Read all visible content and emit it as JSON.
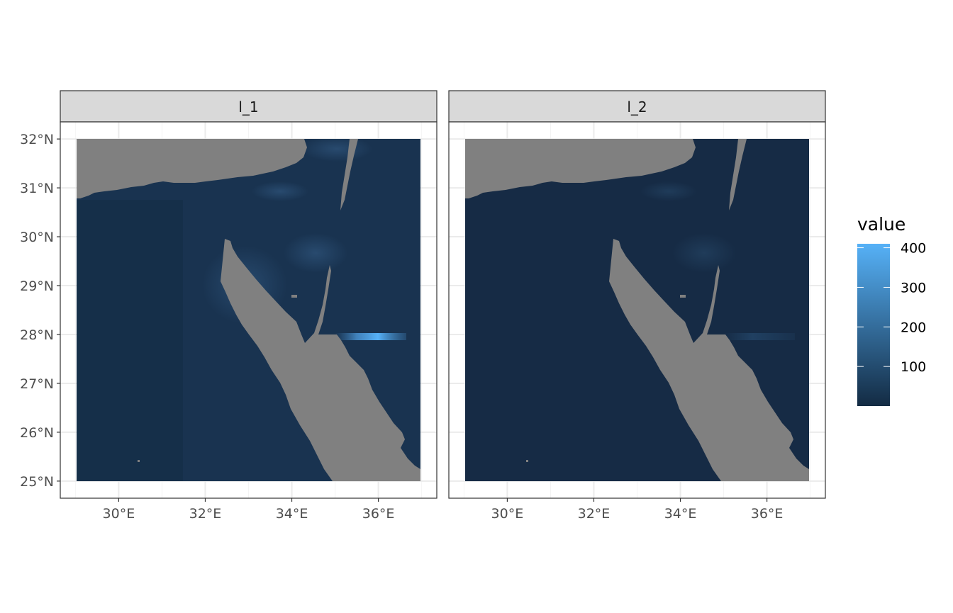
{
  "chart_data": {
    "type": "heatmap",
    "panels": [
      {
        "label": "l_1",
        "sea_color": "#193350",
        "highlight_alpha": 1.0
      },
      {
        "label": "l_2",
        "sea_color": "#162b45",
        "highlight_alpha": 0.35
      }
    ],
    "x_ticks": [
      {
        "value": 30,
        "label": "30°E"
      },
      {
        "value": 32,
        "label": "32°E"
      },
      {
        "value": 34,
        "label": "34°E"
      },
      {
        "value": 36,
        "label": "36°E"
      }
    ],
    "y_ticks": [
      {
        "value": 25,
        "label": "25°N"
      },
      {
        "value": 26,
        "label": "26°N"
      },
      {
        "value": 27,
        "label": "27°N"
      },
      {
        "value": 28,
        "label": "28°N"
      },
      {
        "value": 29,
        "label": "29°N"
      },
      {
        "value": 30,
        "label": "30°N"
      },
      {
        "value": 31,
        "label": "31°N"
      },
      {
        "value": 32,
        "label": "32°N"
      }
    ],
    "xlim": [
      28.65,
      37.35
    ],
    "ylim": [
      24.65,
      32.35
    ],
    "extent": {
      "lon": [
        29,
        37
      ],
      "lat": [
        25,
        32
      ]
    },
    "legend": {
      "title": "value",
      "min": 0,
      "max": 410,
      "ticks": [
        {
          "value": 100,
          "label": "100"
        },
        {
          "value": 200,
          "label": "200"
        },
        {
          "value": 300,
          "label": "300"
        },
        {
          "value": 400,
          "label": "400"
        }
      ],
      "color_low": "#132b43",
      "color_high": "#56b1f7"
    },
    "land_color": "#808080",
    "grid": true
  }
}
